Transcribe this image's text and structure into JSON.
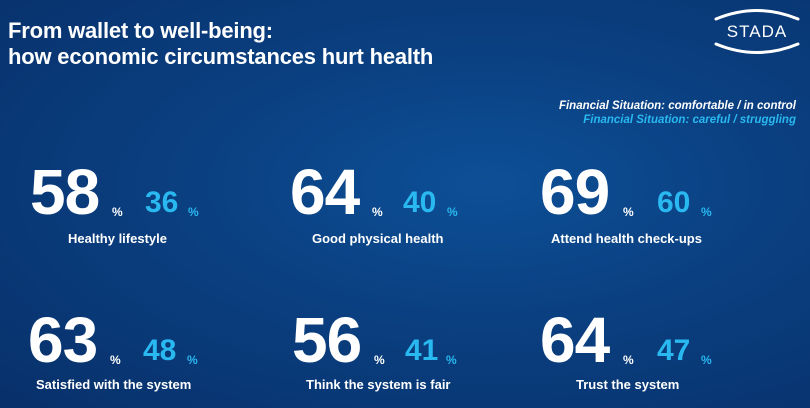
{
  "title": {
    "line1": "From wallet to well-being:",
    "line2": "how economic circumstances hurt health"
  },
  "logo": {
    "text": "STADA"
  },
  "legend": {
    "comfortable": "Financial Situation: comfortable / in control",
    "struggling": "Financial Situation: careful / struggling"
  },
  "colors": {
    "background": "#0a3f80",
    "accent": "#29b8f0",
    "primary_text": "#ffffff"
  },
  "percent_sign": "%",
  "stats": [
    {
      "comfortable": "58",
      "struggling": "36",
      "label": "Healthy lifestyle"
    },
    {
      "comfortable": "64",
      "struggling": "40",
      "label": "Good physical health"
    },
    {
      "comfortable": "69",
      "struggling": "60",
      "label": "Attend health check-ups"
    },
    {
      "comfortable": "63",
      "struggling": "48",
      "label": "Satisfied with the system"
    },
    {
      "comfortable": "56",
      "struggling": "41",
      "label": "Think the system is fair"
    },
    {
      "comfortable": "64",
      "struggling": "47",
      "label": "Trust the system"
    }
  ]
}
